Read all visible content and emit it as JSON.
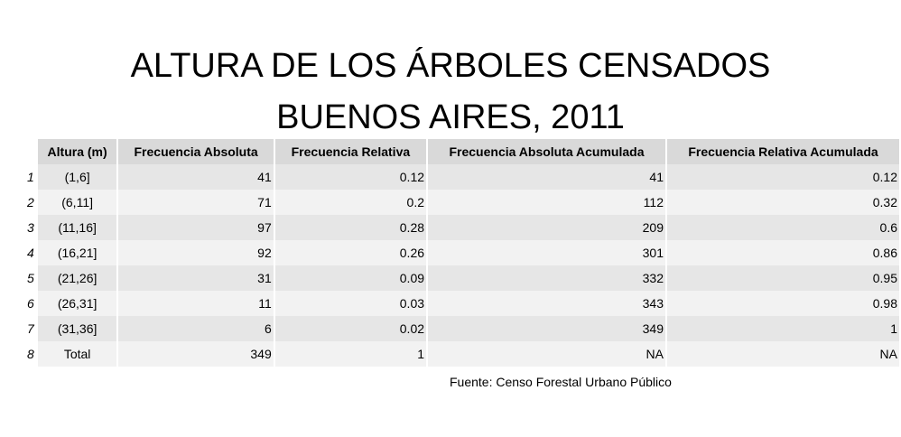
{
  "chart_data": {
    "type": "table",
    "title_line1": "ALTURA DE LOS ÁRBOLES CENSADOS",
    "title_line2": "BUENOS AIRES, 2011",
    "columns": [
      "Altura (m)",
      "Frecuencia Absoluta",
      "Frecuencia Relativa",
      "Frecuencia Absoluta Acumulada",
      "Frecuencia Relativa Acumulada"
    ],
    "rows": [
      {
        "index": "1",
        "cells": [
          "(1,6]",
          "41",
          "0.12",
          "41",
          "0.12"
        ]
      },
      {
        "index": "2",
        "cells": [
          "(6,11]",
          "71",
          "0.2",
          "112",
          "0.32"
        ]
      },
      {
        "index": "3",
        "cells": [
          "(11,16]",
          "97",
          "0.28",
          "209",
          "0.6"
        ]
      },
      {
        "index": "4",
        "cells": [
          "(16,21]",
          "92",
          "0.26",
          "301",
          "0.86"
        ]
      },
      {
        "index": "5",
        "cells": [
          "(21,26]",
          "31",
          "0.09",
          "332",
          "0.95"
        ]
      },
      {
        "index": "6",
        "cells": [
          "(26,31]",
          "11",
          "0.03",
          "343",
          "0.98"
        ]
      },
      {
        "index": "7",
        "cells": [
          "(31,36]",
          "6",
          "0.02",
          "349",
          "1"
        ]
      },
      {
        "index": "8",
        "cells": [
          "Total",
          "349",
          "1",
          "NA",
          "NA"
        ]
      }
    ],
    "source": "Fuente: Censo Forestal Urbano Público",
    "colors": {
      "header": "#d9d9d9",
      "row_even": "#e6e6e6",
      "row_odd": "#f2f2f2"
    }
  }
}
